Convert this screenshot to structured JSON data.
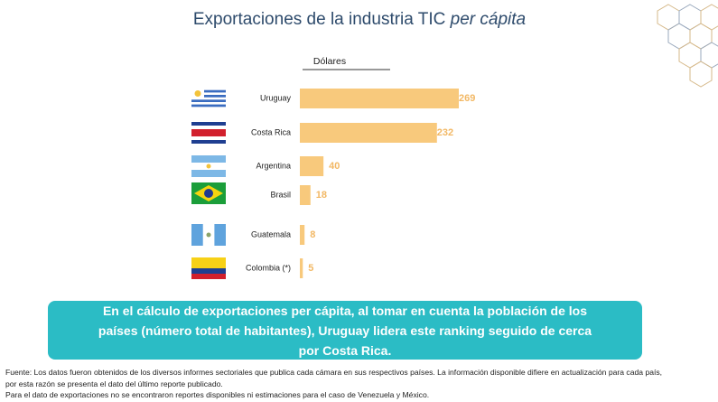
{
  "chart_data": {
    "type": "bar",
    "orientation": "horizontal",
    "title": "Exportaciones de la industria TIC",
    "title_emphasis": "per cápita",
    "unit_label": "Dólares",
    "categories": [
      "Uruguay",
      "Costa Rica",
      "Argentina",
      "Brasil",
      "Guatemala",
      "Colombia (*)"
    ],
    "values": [
      269,
      232,
      40,
      18,
      8,
      5
    ],
    "color": "#f8c97c",
    "label_color": "#f2b865"
  },
  "callout": "En el cálculo de exportaciones per cápita, al tomar en cuenta la población de los países (número total de habitantes), Uruguay lidera este ranking seguido de cerca por Costa Rica.",
  "footnotes": [
    "Fuente: Los datos fueron obtenidos de los diversos informes sectoriales que publica cada cámara en sus respectivos países. La información disponible difiere en actualización para cada país,",
    "por esta razón se presenta el dato del último reporte publicado.",
    "Para el dato de exportaciones no se encontraron reportes disponibles ni estimaciones para el caso de Venezuela y México."
  ]
}
